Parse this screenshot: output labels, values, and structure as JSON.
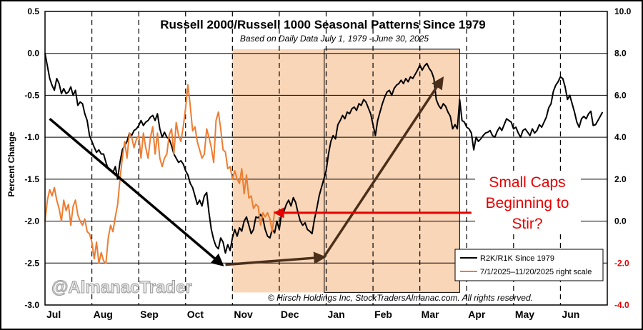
{
  "chart_data": {
    "type": "line",
    "title": "Russell 2000/Russell 1000 Seasonal Patterns Since 1979",
    "subtitle": "Based on Daily Data July 1, 1979 - June 30, 2025",
    "ylabel": "Percent Change",
    "months": [
      "Jul",
      "Aug",
      "Sep",
      "Oct",
      "Nov",
      "Dec",
      "Jan",
      "Feb",
      "Mar",
      "Apr",
      "May",
      "Jun"
    ],
    "left_axis": {
      "range": [
        -3.0,
        0.5
      ],
      "ticks": [
        "0.5",
        "0.0",
        "-0.5",
        "-1.0",
        "-1.5",
        "-2.0",
        "-2.5",
        "-3.0"
      ]
    },
    "right_axis": {
      "range": [
        -4.0,
        10.0
      ],
      "ticks": [
        "10.0",
        "8.0",
        "6.0",
        "4.0",
        "2.0",
        "0.0",
        "-2.0",
        "-4.0"
      ]
    },
    "series": [
      {
        "name": "R2K/R1K Since 1979",
        "axis": "left",
        "color": "#000000",
        "x": [
          0,
          0.05,
          0.1,
          0.15,
          0.2,
          0.25,
          0.3,
          0.35,
          0.4,
          0.45,
          0.5,
          0.55,
          0.6,
          0.65,
          0.7,
          0.75,
          0.8,
          0.85,
          0.9,
          0.95,
          1.0,
          1.05,
          1.1,
          1.15,
          1.2,
          1.25,
          1.3,
          1.35,
          1.4,
          1.45,
          1.5,
          1.55,
          1.6,
          1.65,
          1.7,
          1.75,
          1.8,
          1.85,
          1.9,
          1.95,
          2.0,
          2.05,
          2.1,
          2.15,
          2.2,
          2.25,
          2.3,
          2.35,
          2.4,
          2.45,
          2.5,
          2.55,
          2.6,
          2.65,
          2.7,
          2.75,
          2.8,
          2.85,
          2.9,
          2.95,
          3.0,
          3.05,
          3.1,
          3.15,
          3.2,
          3.25,
          3.3,
          3.35,
          3.4,
          3.45,
          3.5,
          3.55,
          3.6,
          3.65,
          3.7,
          3.75,
          3.8,
          3.85,
          3.9,
          3.95,
          4.0,
          4.05,
          4.1,
          4.15,
          4.2,
          4.25,
          4.3,
          4.35,
          4.4,
          4.45,
          4.5,
          4.55,
          4.6,
          4.65,
          4.7,
          4.75,
          4.8,
          4.85,
          4.9,
          4.95,
          5.0,
          5.05,
          5.1,
          5.15,
          5.2,
          5.25,
          5.3,
          5.35,
          5.4,
          5.45,
          5.5,
          5.55,
          5.6,
          5.65,
          5.7,
          5.75,
          5.8,
          5.85,
          5.9,
          5.95,
          6.0,
          6.05,
          6.1,
          6.15,
          6.2,
          6.25,
          6.3,
          6.35,
          6.4,
          6.45,
          6.5,
          6.55,
          6.6,
          6.65,
          6.7,
          6.75,
          6.8,
          6.85,
          6.9,
          6.95,
          7.0,
          7.05,
          7.1,
          7.15,
          7.2,
          7.25,
          7.3,
          7.35,
          7.4,
          7.45,
          7.5,
          7.55,
          7.6,
          7.65,
          7.7,
          7.75,
          7.8,
          7.85,
          7.9,
          7.95,
          8.0,
          8.05,
          8.1,
          8.15,
          8.2,
          8.25,
          8.3,
          8.35,
          8.4,
          8.45,
          8.5,
          8.55,
          8.6,
          8.65,
          8.7,
          8.75,
          8.8,
          8.85,
          8.9,
          8.95,
          9.0,
          9.05,
          9.1,
          9.15,
          9.2,
          9.25,
          9.3,
          9.35,
          9.4,
          9.45,
          9.5,
          9.55,
          9.6,
          9.65,
          9.7,
          9.75,
          9.8,
          9.85,
          9.9,
          9.95,
          10.0,
          10.05,
          10.1,
          10.15,
          10.2,
          10.25,
          10.3,
          10.35,
          10.4,
          10.45,
          10.5,
          10.55,
          10.6,
          10.65,
          10.7,
          10.75,
          10.8,
          10.85,
          10.9,
          10.95,
          11.0,
          11.05,
          11.1,
          11.15,
          11.2,
          11.25,
          11.3,
          11.35,
          11.4,
          11.45,
          11.5,
          11.55,
          11.6,
          11.65,
          11.7,
          11.75,
          11.8,
          11.85,
          11.9
        ],
        "values": [
          0.0,
          -0.15,
          -0.3,
          -0.38,
          -0.44,
          -0.3,
          -0.36,
          -0.48,
          -0.42,
          -0.48,
          -0.46,
          -0.4,
          -0.5,
          -0.44,
          -0.62,
          -0.58,
          -0.6,
          -0.72,
          -0.8,
          -0.98,
          -1.05,
          -1.12,
          -1.18,
          -1.15,
          -1.2,
          -1.2,
          -1.3,
          -1.38,
          -1.4,
          -1.42,
          -1.35,
          -1.5,
          -1.3,
          -1.15,
          -1.1,
          -1.05,
          -0.95,
          -0.98,
          -0.92,
          -0.9,
          -0.86,
          -0.8,
          -0.86,
          -0.82,
          -0.8,
          -0.76,
          -0.74,
          -0.8,
          -0.72,
          -0.9,
          -1.0,
          -0.94,
          -1.0,
          -1.02,
          -1.1,
          -1.2,
          -1.25,
          -1.3,
          -1.28,
          -1.32,
          -1.4,
          -1.45,
          -1.55,
          -1.6,
          -1.7,
          -1.8,
          -1.75,
          -1.82,
          -1.7,
          -1.66,
          -1.9,
          -2.1,
          -2.22,
          -2.3,
          -2.33,
          -2.2,
          -2.25,
          -2.38,
          -2.28,
          -2.35,
          -2.2,
          -2.1,
          -2.18,
          -2.08,
          -2.12,
          -2.0,
          -1.95,
          -2.05,
          -2.15,
          -2.1,
          -1.95,
          -1.96,
          -1.92,
          -1.97,
          -2.1,
          -2.18,
          -2.2,
          -2.1,
          -2.14,
          -2.0,
          -2.1,
          -1.9,
          -1.88,
          -1.8,
          -1.75,
          -1.82,
          -1.72,
          -1.78,
          -1.9,
          -2.0,
          -2.05,
          -2.02,
          -2.1,
          -2.12,
          -2.15,
          -1.98,
          -1.85,
          -1.7,
          -1.6,
          -1.5,
          -1.4,
          -1.2,
          -1.05,
          -0.98,
          -1.02,
          -0.85,
          -0.8,
          -0.74,
          -0.78,
          -0.7,
          -0.72,
          -0.66,
          -0.64,
          -0.68,
          -0.6,
          -0.62,
          -0.55,
          -0.58,
          -0.65,
          -0.72,
          -0.85,
          -0.98,
          -0.8,
          -0.7,
          -0.6,
          -0.52,
          -0.46,
          -0.44,
          -0.5,
          -0.42,
          -0.38,
          -0.36,
          -0.32,
          -0.36,
          -0.3,
          -0.34,
          -0.28,
          -0.3,
          -0.25,
          -0.2,
          -0.14,
          -0.2,
          -0.15,
          -0.12,
          -0.18,
          -0.22,
          -0.3,
          -0.55,
          -0.62,
          -0.66,
          -0.6,
          -0.63,
          -0.7,
          -0.75,
          -0.9,
          -0.85,
          -0.9,
          -0.55,
          -0.8,
          -0.82,
          -0.88,
          -0.9,
          -0.95,
          -1.15,
          -1.0,
          -1.05,
          -1.02,
          -0.98,
          -0.95,
          -0.94,
          -0.92,
          -0.98,
          -1.0,
          -0.93,
          -0.88,
          -0.92,
          -0.85,
          -0.78,
          -0.8,
          -0.82,
          -0.9,
          -0.88,
          -0.95,
          -1.0,
          -0.92,
          -0.9,
          -0.94,
          -0.98,
          -0.9,
          -0.95,
          -0.92,
          -0.85,
          -0.88,
          -0.82,
          -0.76,
          -0.65,
          -0.6,
          -0.45,
          -0.38,
          -0.34,
          -0.28,
          -0.3,
          -0.4,
          -0.55,
          -0.5,
          -0.6,
          -0.7,
          -0.82,
          -0.88,
          -0.78,
          -0.75,
          -0.78,
          -0.72,
          -0.69,
          -0.86,
          -0.85,
          -0.8,
          -0.75,
          -0.7
        ]
      },
      {
        "name": "7/1/2025–11/20/2025 right scale",
        "axis": "right",
        "color": "#ed7d31",
        "x": [
          0,
          0.05,
          0.1,
          0.15,
          0.2,
          0.25,
          0.3,
          0.35,
          0.4,
          0.45,
          0.5,
          0.55,
          0.6,
          0.65,
          0.7,
          0.75,
          0.8,
          0.85,
          0.9,
          0.95,
          1.0,
          1.05,
          1.1,
          1.15,
          1.2,
          1.25,
          1.3,
          1.35,
          1.4,
          1.45,
          1.5,
          1.55,
          1.6,
          1.65,
          1.7,
          1.75,
          1.8,
          1.85,
          1.9,
          1.95,
          2.0,
          2.05,
          2.1,
          2.15,
          2.2,
          2.25,
          2.3,
          2.35,
          2.4,
          2.45,
          2.5,
          2.55,
          2.6,
          2.65,
          2.7,
          2.75,
          2.8,
          2.85,
          2.9,
          2.95,
          3.0,
          3.05,
          3.1,
          3.15,
          3.2,
          3.25,
          3.3,
          3.35,
          3.4,
          3.45,
          3.5,
          3.55,
          3.6,
          3.65,
          3.7,
          3.75,
          3.8,
          3.85,
          3.9,
          3.95,
          4.0,
          4.05,
          4.1,
          4.15,
          4.2,
          4.25,
          4.3,
          4.35,
          4.4,
          4.45,
          4.5,
          4.55,
          4.6,
          4.65,
          4.7,
          4.75,
          4.8,
          4.85,
          4.9
        ],
        "values": [
          0.0,
          1.0,
          1.5,
          1.2,
          1.6,
          1.0,
          0.6,
          0.0,
          1.0,
          0.5,
          0.8,
          -0.2,
          0.7,
          1.0,
          0.3,
          0.0,
          -0.2,
          0.1,
          -0.5,
          -0.6,
          -1.0,
          -1.8,
          -1.0,
          -2.0,
          -1.5,
          -1.9,
          -2.0,
          -0.8,
          -0.2,
          -0.5,
          0.2,
          0.8,
          2.0,
          3.0,
          3.8,
          3.0,
          4.2,
          4.0,
          3.5,
          3.9,
          4.1,
          3.0,
          4.2,
          3.5,
          3.0,
          4.0,
          4.5,
          3.2,
          4.2,
          3.0,
          2.6,
          3.0,
          3.2,
          4.1,
          4.4,
          3.2,
          4.7,
          4.1,
          3.8,
          4.5,
          5.4,
          6.5,
          5.5,
          4.3,
          4.5,
          3.8,
          3.4,
          3.0,
          3.2,
          4.4,
          4.0,
          3.5,
          2.8,
          4.8,
          5.2,
          4.4,
          3.4,
          3.3,
          2.5,
          2.6,
          2.0,
          2.4,
          2.0,
          1.8,
          2.5,
          1.3,
          2.2,
          1.1,
          1.2,
          0.6,
          0.8,
          0.7,
          -0.2,
          0.4,
          0.2,
          0.4,
          0.1,
          -0.5,
          0.5
        ]
      }
    ],
    "arrows": [
      {
        "color": "#000000",
        "from": [
          0.1,
          -0.78
        ],
        "to": [
          3.78,
          -2.52
        ]
      },
      {
        "color": "#4a2f1a",
        "from": [
          3.85,
          -2.52
        ],
        "to": [
          5.95,
          -2.43
        ]
      },
      {
        "color": "#4a2f1a",
        "from": [
          5.95,
          -2.43
        ],
        "to": [
          8.48,
          -0.3
        ]
      },
      {
        "color": "#e60000",
        "from": [
          9.1,
          -1.9
        ],
        "to": [
          4.92,
          -1.9
        ]
      }
    ],
    "shaded_band": {
      "from": 4.0,
      "to": 8.85,
      "color": "#fad6b8"
    },
    "box": {
      "from": 5.96,
      "to": 8.85,
      "y_from": 0.05,
      "y_to": -2.85
    },
    "annotation": "Small Caps Beginning to Stir?",
    "legend": [
      "R2K/R1K Since 1979",
      "7/1/2025–11/20/2025 right scale"
    ],
    "legend_position": "bottom-right",
    "watermark": "@AlmanacTrader",
    "copyright": "© Hirsch Holdings Inc, StockTradersAlmanac.com. All rights reserved."
  }
}
